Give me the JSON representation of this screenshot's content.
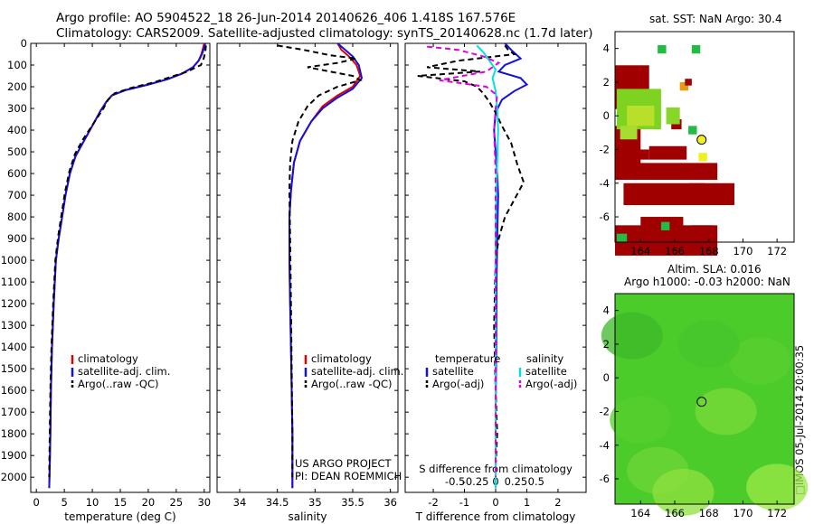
{
  "header": {
    "line1": "Argo profile: AO 5904522_18 26-Jun-2014 20140626_406 1.418S 167.576E",
    "line2": "Climatology: CARS2009. Satellite-adjusted climatology: synTS_20140628.nc (1.7d later)"
  },
  "notes": {
    "project_line1": "US ARGO PROJECT",
    "project_line2": "PI: DEAN ROEMMICH",
    "watermark": "□IMOS 05-Jul-2014 20:00:35"
  },
  "map_titles": {
    "sst": "sat. SST: NaN Argo: 30.4",
    "sla_line1": "Altim. SLA: 0.016",
    "sla_line2": "Argo h1000: -0.03 h2000: NaN"
  },
  "colors": {
    "climatology": "#e00000",
    "satellite": "#1010e0",
    "argo": "#000000",
    "salinity_sat": "#00e0e0",
    "salinity_argo": "#e000e0",
    "land_red": "#a00000",
    "map_green": "#33cc33"
  },
  "chart_data": [
    {
      "type": "line",
      "name": "temperature-profile",
      "xlabel": "temperature (deg C)",
      "ylabel": "",
      "xlim": [
        -1,
        31
      ],
      "ylim": [
        2070,
        0
      ],
      "xticks": [
        0,
        5,
        10,
        15,
        20,
        25,
        30
      ],
      "yticks": [
        0,
        100,
        200,
        300,
        400,
        500,
        600,
        700,
        800,
        900,
        1000,
        1100,
        1200,
        1300,
        1400,
        1500,
        1600,
        1700,
        1800,
        1900,
        2000
      ],
      "legend": [
        "climatology",
        "satellite-adj. clim.",
        "Argo(..raw -QC)"
      ],
      "series": [
        {
          "name": "climatology",
          "style": "solid",
          "x": [
            30.0,
            29.8,
            29.5,
            29.0,
            28.0,
            26.0,
            23.5,
            20.0,
            16.0,
            13.5,
            12.5,
            11.5,
            10.0,
            8.5,
            7.0,
            6.0,
            5.2,
            4.6,
            4.0,
            3.5,
            3.1,
            2.8,
            2.6,
            2.5,
            2.4,
            2.3
          ],
          "y": [
            0,
            20,
            50,
            80,
            110,
            140,
            165,
            190,
            215,
            240,
            270,
            310,
            380,
            450,
            520,
            600,
            700,
            800,
            900,
            1000,
            1200,
            1400,
            1600,
            1800,
            1950,
            2050
          ]
        },
        {
          "name": "satellite-adj. clim.",
          "style": "solid",
          "x": [
            30.2,
            30.0,
            29.6,
            29.0,
            28.0,
            26.0,
            23.5,
            20.0,
            16.0,
            13.5,
            12.5,
            11.5,
            10.0,
            8.5,
            7.0,
            6.0,
            5.2,
            4.6,
            4.0,
            3.5,
            3.1,
            2.8,
            2.6,
            2.5,
            2.4,
            2.3
          ],
          "y": [
            0,
            20,
            50,
            80,
            110,
            140,
            165,
            190,
            215,
            240,
            270,
            310,
            380,
            450,
            520,
            600,
            700,
            800,
            900,
            1000,
            1200,
            1400,
            1600,
            1800,
            1950,
            2050
          ]
        },
        {
          "name": "Argo(..raw -QC)",
          "style": "dashed",
          "x": [
            30.3,
            30.2,
            29.9,
            29.4,
            27.0,
            24.0,
            21.0,
            17.0,
            14.0,
            12.8,
            12.0,
            10.2,
            8.4,
            6.9,
            5.9,
            5.1,
            4.5,
            3.9,
            3.4,
            3.0,
            2.7,
            2.5,
            2.4,
            2.3
          ],
          "y": [
            10,
            40,
            70,
            100,
            130,
            155,
            180,
            205,
            230,
            260,
            300,
            370,
            440,
            510,
            590,
            690,
            790,
            890,
            1000,
            1200,
            1400,
            1600,
            1800,
            2000
          ]
        }
      ]
    },
    {
      "type": "line",
      "name": "salinity-profile",
      "xlabel": "salinity",
      "xlim": [
        33.7,
        36.1
      ],
      "ylim": [
        2070,
        0
      ],
      "xticks": [
        34,
        34.5,
        35,
        35.5,
        36
      ],
      "legend": [
        "climatology",
        "satellite-adj. clim.",
        "Argo(..raw -QC)"
      ],
      "series": [
        {
          "name": "climatology",
          "style": "solid",
          "x": [
            35.3,
            35.35,
            35.45,
            35.55,
            35.6,
            35.5,
            35.3,
            35.1,
            34.95,
            34.8,
            34.72,
            34.68,
            34.66,
            34.66,
            34.67,
            34.68,
            34.69,
            34.7,
            34.7
          ],
          "y": [
            0,
            30,
            60,
            100,
            150,
            200,
            240,
            290,
            360,
            450,
            550,
            680,
            800,
            1000,
            1200,
            1400,
            1600,
            1800,
            2050
          ]
        },
        {
          "name": "satellite-adj. clim.",
          "style": "solid",
          "x": [
            35.3,
            35.4,
            35.5,
            35.58,
            35.62,
            35.5,
            35.3,
            35.1,
            34.95,
            34.8,
            34.72,
            34.68,
            34.66,
            34.66,
            34.67,
            34.68,
            34.69,
            34.7,
            34.7
          ],
          "y": [
            0,
            30,
            60,
            100,
            160,
            210,
            250,
            300,
            360,
            450,
            550,
            680,
            800,
            1000,
            1200,
            1400,
            1600,
            1800,
            2050
          ]
        },
        {
          "name": "Argo(..raw -QC)",
          "style": "dashed",
          "x": [
            34.5,
            34.85,
            35.2,
            35.55,
            35.3,
            34.9,
            35.2,
            35.5,
            35.6,
            35.3,
            35.05,
            34.9,
            34.78,
            34.7,
            34.67,
            34.66,
            34.67,
            34.68,
            34.69,
            34.7,
            34.7
          ],
          "y": [
            10,
            30,
            55,
            70,
            90,
            110,
            130,
            150,
            170,
            200,
            240,
            290,
            360,
            450,
            550,
            680,
            900,
            1200,
            1500,
            1800,
            2000
          ]
        }
      ]
    },
    {
      "type": "line",
      "name": "difference-profile",
      "xlabel": "T difference from climatology",
      "x2label": "S difference from climatology",
      "xlim": [
        -2.9,
        2.9
      ],
      "ylim": [
        2070,
        0
      ],
      "xticks": [
        -2,
        -1,
        0,
        1,
        2
      ],
      "x2ticks": [
        -0.5,
        -0.25,
        0,
        0.25,
        0.5
      ],
      "legend_headers": [
        "temperature",
        "salinity"
      ],
      "legend": [
        "satellite",
        "Argo(-adj)",
        "satellite",
        "Argo(-adj)"
      ],
      "series": [
        {
          "name": "temperature satellite",
          "style": "solid",
          "x": [
            0.3,
            0.5,
            0.8,
            0.3,
            0.1,
            0.8,
            1.0,
            0.6,
            0.2,
            0.0,
            -0.05,
            0.0,
            0.05,
            0.08,
            0.05,
            0.03,
            0.02,
            0.0,
            0.0,
            0.0
          ],
          "y": [
            0,
            30,
            70,
            100,
            130,
            160,
            190,
            220,
            260,
            320,
            400,
            500,
            600,
            700,
            900,
            1100,
            1400,
            1700,
            1900,
            2050
          ]
        },
        {
          "name": "temperature Argo(-adj)",
          "style": "dashed",
          "x": [
            0.3,
            0.4,
            0.6,
            -1.2,
            -2.2,
            -0.5,
            -2.5,
            -1.0,
            -0.6,
            -0.4,
            -0.2,
            0.0,
            0.2,
            0.5,
            0.7,
            0.9,
            0.6,
            0.3,
            0.1,
            0.0,
            -0.05,
            0.0,
            0.05,
            0.0,
            0.0
          ],
          "y": [
            10,
            30,
            50,
            80,
            110,
            130,
            150,
            175,
            200,
            230,
            270,
            320,
            380,
            460,
            560,
            640,
            720,
            800,
            900,
            1000,
            1300,
            1600,
            1800,
            1950,
            2050
          ]
        },
        {
          "name": "salinity satellite",
          "style": "solid",
          "x": [
            -0.6,
            -0.4,
            -0.2,
            0.0,
            -0.1,
            0.0,
            0.05,
            0.08,
            0.05,
            0.02,
            0.0,
            0.0,
            0.0,
            0.0
          ],
          "y": [
            10,
            40,
            80,
            120,
            160,
            220,
            300,
            400,
            550,
            700,
            900,
            1200,
            1600,
            2050
          ]
        },
        {
          "name": "salinity Argo(-adj)",
          "style": "dashed",
          "x": [
            -2.2,
            -1.2,
            -0.4,
            0.1,
            -0.3,
            -1.8,
            -0.3,
            0.05,
            0.0,
            -0.05,
            0.0,
            0.0,
            0.0,
            0.0
          ],
          "y": [
            15,
            30,
            60,
            90,
            130,
            170,
            200,
            240,
            300,
            400,
            600,
            900,
            1400,
            2000
          ]
        }
      ]
    },
    {
      "type": "heatmap",
      "name": "sst-map",
      "title": "sat. SST: NaN Argo: 30.4",
      "xlim": [
        162.5,
        173
      ],
      "ylim": [
        -7.5,
        5
      ],
      "xticks": [
        164,
        166,
        168,
        170,
        172
      ],
      "yticks": [
        -6,
        -4,
        -2,
        0,
        2,
        4
      ],
      "argo_position": [
        167.576,
        -1.418
      ]
    },
    {
      "type": "heatmap",
      "name": "sla-map",
      "title": "Altim. SLA: 0.016",
      "subtitle": "Argo h1000: -0.03 h2000: NaN",
      "xlim": [
        162.5,
        173
      ],
      "ylim": [
        -7.5,
        5
      ],
      "xticks": [
        164,
        166,
        168,
        170,
        172
      ],
      "yticks": [
        -6,
        -4,
        -2,
        0,
        2,
        4
      ],
      "argo_position": [
        167.576,
        -1.418
      ]
    }
  ]
}
